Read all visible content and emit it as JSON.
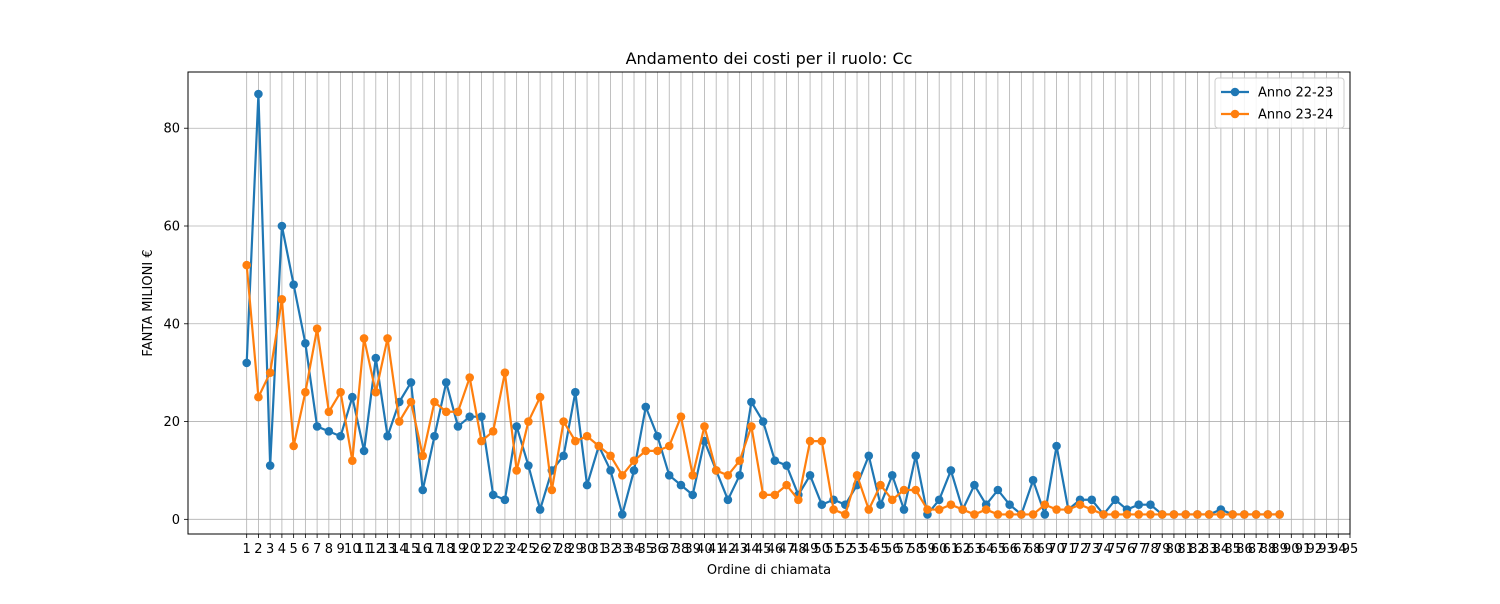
{
  "chart_data": {
    "type": "line",
    "title": "Andamento dei costi per il ruolo: Cc",
    "xlabel": "Ordine di chiamata",
    "ylabel": "FANTA MILIONI €",
    "xlim": [
      -4,
      95
    ],
    "ylim": [
      -3,
      91.5
    ],
    "x_ticks": [
      1,
      2,
      3,
      4,
      5,
      6,
      7,
      8,
      9,
      10,
      11,
      12,
      13,
      14,
      15,
      16,
      17,
      18,
      19,
      20,
      21,
      22,
      23,
      24,
      25,
      26,
      27,
      28,
      29,
      30,
      31,
      32,
      33,
      34,
      35,
      36,
      37,
      38,
      39,
      40,
      41,
      42,
      43,
      44,
      45,
      46,
      47,
      48,
      49,
      50,
      51,
      52,
      53,
      54,
      55,
      56,
      57,
      58,
      59,
      60,
      61,
      62,
      63,
      64,
      65,
      66,
      67,
      68,
      69,
      70,
      71,
      72,
      73,
      74,
      75,
      76,
      77,
      78,
      79,
      80,
      81,
      82,
      83,
      84,
      85,
      86,
      87,
      88,
      89,
      90,
      91,
      92,
      93,
      94,
      95
    ],
    "y_ticks": [
      0,
      20,
      40,
      60,
      80
    ],
    "grid": true,
    "legend_position": "top-right",
    "series": [
      {
        "name": "Anno 22-23",
        "color": "#1f77b4",
        "marker": "circle",
        "x": [
          1,
          2,
          3,
          4,
          5,
          6,
          7,
          8,
          9,
          10,
          11,
          12,
          13,
          14,
          15,
          16,
          17,
          18,
          19,
          20,
          21,
          22,
          23,
          24,
          25,
          26,
          27,
          28,
          29,
          30,
          31,
          32,
          33,
          34,
          35,
          36,
          37,
          38,
          39,
          40,
          41,
          42,
          43,
          44,
          45,
          46,
          47,
          48,
          49,
          50,
          51,
          52,
          53,
          54,
          55,
          56,
          57,
          58,
          59,
          60,
          61,
          62,
          63,
          64,
          65,
          66,
          67,
          68,
          69,
          70,
          71,
          72,
          73,
          74,
          75,
          76,
          77,
          78,
          79,
          80,
          81,
          82,
          83,
          84,
          85,
          86,
          87,
          88,
          89
        ],
        "values": [
          32,
          87,
          11,
          60,
          48,
          36,
          19,
          18,
          17,
          25,
          14,
          33,
          17,
          24,
          28,
          6,
          17,
          28,
          19,
          21,
          21,
          5,
          4,
          19,
          11,
          2,
          10,
          13,
          26,
          7,
          15,
          10,
          1,
          10,
          23,
          17,
          9,
          7,
          5,
          16,
          10,
          4,
          9,
          24,
          20,
          12,
          11,
          5,
          9,
          3,
          4,
          3,
          7,
          13,
          3,
          9,
          2,
          13,
          1,
          4,
          10,
          2,
          7,
          3,
          6,
          3,
          1,
          8,
          1,
          15,
          2,
          4,
          4,
          1,
          4,
          2,
          3,
          3,
          1,
          1,
          1,
          1,
          1,
          2,
          1,
          1,
          1,
          1,
          1
        ]
      },
      {
        "name": "Anno 23-24",
        "color": "#ff7f0e",
        "marker": "circle",
        "x": [
          1,
          2,
          3,
          4,
          5,
          6,
          7,
          8,
          9,
          10,
          11,
          12,
          13,
          14,
          15,
          16,
          17,
          18,
          19,
          20,
          21,
          22,
          23,
          24,
          25,
          26,
          27,
          28,
          29,
          30,
          31,
          32,
          33,
          34,
          35,
          36,
          37,
          38,
          39,
          40,
          41,
          42,
          43,
          44,
          45,
          46,
          47,
          48,
          49,
          50,
          51,
          52,
          53,
          54,
          55,
          56,
          57,
          58,
          59,
          60,
          61,
          62,
          63,
          64,
          65,
          66,
          67,
          68,
          69,
          70,
          71,
          72,
          73,
          74,
          75,
          76,
          77,
          78,
          79,
          80,
          81,
          82,
          83,
          84,
          85,
          86,
          87,
          88,
          89
        ],
        "values": [
          52,
          25,
          30,
          45,
          15,
          26,
          39,
          22,
          26,
          12,
          37,
          26,
          37,
          20,
          24,
          13,
          24,
          22,
          22,
          29,
          16,
          18,
          30,
          10,
          20,
          25,
          6,
          20,
          16,
          17,
          15,
          13,
          9,
          12,
          14,
          14,
          15,
          21,
          9,
          19,
          10,
          9,
          12,
          19,
          5,
          5,
          7,
          4,
          16,
          16,
          2,
          1,
          9,
          2,
          7,
          4,
          6,
          6,
          2,
          2,
          3,
          2,
          1,
          2,
          1,
          1,
          1,
          1,
          3,
          2,
          2,
          3,
          2,
          1,
          1,
          1,
          1,
          1,
          1,
          1,
          1,
          1,
          1,
          1,
          1,
          1,
          1,
          1,
          1
        ]
      }
    ]
  }
}
